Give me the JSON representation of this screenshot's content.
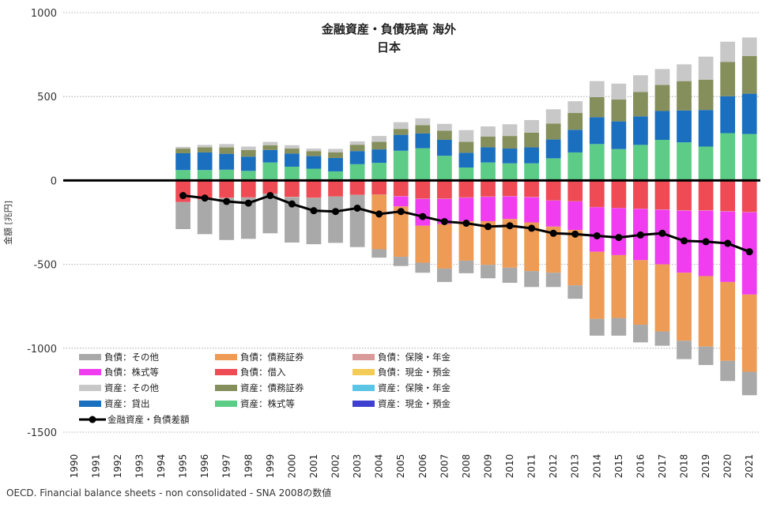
{
  "chart_data": {
    "type": "bar",
    "subtype": "stacked-bar-with-line",
    "title": "金融資産・負債残高 海外",
    "subtitle": "日本",
    "ylabel": "金額 [兆円]",
    "xlabel": "",
    "ylim": [
      -1500,
      1000
    ],
    "yticks": [
      1000,
      500,
      0,
      -500,
      -1000,
      -1500
    ],
    "ytick_labels": [
      "1000",
      "500",
      "0",
      "-500",
      "-1000",
      "-1500"
    ],
    "categories": [
      "1990",
      "1991",
      "1992",
      "1993",
      "1994",
      "1995",
      "1996",
      "1997",
      "1998",
      "1999",
      "2000",
      "2001",
      "2002",
      "2003",
      "2004",
      "2005",
      "2006",
      "2007",
      "2008",
      "2009",
      "2010",
      "2011",
      "2012",
      "2013",
      "2014",
      "2015",
      "2016",
      "2017",
      "2018",
      "2019",
      "2020",
      "2021"
    ],
    "asset_series": [
      {
        "name": "資産：現金・預金",
        "color": "#4040d0",
        "values": [
          null,
          null,
          null,
          null,
          null,
          2,
          2,
          2,
          2,
          2,
          2,
          2,
          2,
          2,
          2,
          2,
          2,
          2,
          2,
          2,
          2,
          2,
          2,
          2,
          2,
          2,
          2,
          2,
          2,
          2,
          2,
          2
        ]
      },
      {
        "name": "資産：株式等",
        "color": "#5dcc87",
        "values": [
          null,
          null,
          null,
          null,
          null,
          60,
          60,
          62,
          55,
          105,
          80,
          68,
          52,
          95,
          103,
          175,
          190,
          145,
          75,
          105,
          100,
          100,
          130,
          165,
          215,
          185,
          210,
          240,
          225,
          200,
          280,
          275
        ]
      },
      {
        "name": "資産：保険・年金",
        "color": "#5bc5e6",
        "values": [
          null,
          null,
          null,
          null,
          null,
          0,
          0,
          0,
          0,
          0,
          0,
          0,
          0,
          0,
          0,
          0,
          0,
          0,
          0,
          0,
          0,
          0,
          0,
          0,
          0,
          0,
          0,
          0,
          0,
          0,
          0,
          0
        ]
      },
      {
        "name": "資産：貸出",
        "color": "#1a6fbf",
        "values": [
          null,
          null,
          null,
          null,
          null,
          100,
          105,
          95,
          85,
          75,
          78,
          75,
          80,
          78,
          80,
          95,
          88,
          95,
          88,
          90,
          88,
          95,
          112,
          135,
          160,
          165,
          170,
          172,
          190,
          218,
          220,
          240
        ]
      },
      {
        "name": "資産：債務証券",
        "color": "#858f5c",
        "values": [
          null,
          null,
          null,
          null,
          null,
          28,
          30,
          38,
          40,
          28,
          30,
          30,
          34,
          38,
          45,
          35,
          50,
          55,
          65,
          65,
          75,
          88,
          95,
          100,
          120,
          130,
          145,
          155,
          175,
          180,
          205,
          225
        ]
      },
      {
        "name": "資産：その他",
        "color": "#c8c8c8",
        "values": [
          null,
          null,
          null,
          null,
          null,
          10,
          15,
          20,
          20,
          20,
          20,
          15,
          20,
          20,
          35,
          40,
          40,
          40,
          70,
          60,
          70,
          75,
          85,
          70,
          95,
          95,
          100,
          95,
          100,
          138,
          120,
          110
        ]
      }
    ],
    "liability_series": [
      {
        "name": "負債：現金・預金",
        "color": "#f2cc56",
        "values": [
          null,
          null,
          null,
          null,
          null,
          -3,
          -3,
          -3,
          -3,
          -3,
          -3,
          -3,
          -3,
          -3,
          -3,
          -3,
          -3,
          -3,
          -3,
          -3,
          -3,
          -3,
          -3,
          -3,
          -3,
          -3,
          -3,
          -3,
          -3,
          -3,
          -3,
          -3
        ]
      },
      {
        "name": "負債：借入",
        "color": "#ee4b55",
        "values": [
          null,
          null,
          null,
          null,
          null,
          -125,
          -110,
          -100,
          -98,
          -75,
          -95,
          -100,
          -92,
          -82,
          -80,
          -90,
          -105,
          -105,
          -98,
          -93,
          -90,
          -95,
          -115,
          -120,
          -155,
          -160,
          -165,
          -170,
          -175,
          -175,
          -180,
          -185
        ]
      },
      {
        "name": "負債：保険・年金",
        "color": "#d99a9a",
        "values": [
          null,
          null,
          null,
          null,
          null,
          -2,
          -2,
          -2,
          -2,
          -2,
          -2,
          -2,
          -2,
          -2,
          -2,
          -2,
          -2,
          -2,
          -2,
          -2,
          -2,
          -2,
          -2,
          -2,
          -2,
          -2,
          -2,
          -2,
          -2,
          -2,
          -2,
          -2
        ]
      },
      {
        "name": "負債：株式等",
        "color": "#f03df0",
        "values": [
          null,
          null,
          null,
          null,
          null,
          0,
          0,
          0,
          0,
          0,
          0,
          0,
          0,
          0,
          0,
          -60,
          -160,
          -150,
          -140,
          -145,
          -135,
          -150,
          -155,
          -170,
          -265,
          -280,
          -305,
          -325,
          -370,
          -390,
          -420,
          -490
        ]
      },
      {
        "name": "負債：債務証券",
        "color": "#ee9b55",
        "values": [
          null,
          null,
          null,
          null,
          null,
          0,
          0,
          0,
          0,
          0,
          0,
          0,
          0,
          0,
          -325,
          -300,
          -220,
          -265,
          -235,
          -260,
          -290,
          -290,
          -275,
          -330,
          -400,
          -375,
          -385,
          -400,
          -405,
          -420,
          -470,
          -460
        ]
      },
      {
        "name": "負債：その他",
        "color": "#a9a9a9",
        "values": [
          null,
          null,
          null,
          null,
          null,
          -160,
          -205,
          -250,
          -245,
          -235,
          -270,
          -275,
          -275,
          -310,
          -50,
          -55,
          -60,
          -80,
          -75,
          -80,
          -90,
          -95,
          -85,
          -80,
          -100,
          -105,
          -105,
          -85,
          -110,
          -110,
          -120,
          -140
        ]
      }
    ],
    "line_series": {
      "name": "金融資産・負債差額",
      "color": "#000000",
      "values": [
        null,
        null,
        null,
        null,
        null,
        -90,
        -105,
        -125,
        -135,
        -90,
        -140,
        -180,
        -185,
        -165,
        -200,
        -185,
        -215,
        -245,
        -255,
        -275,
        -270,
        -285,
        -315,
        -320,
        -330,
        -340,
        -325,
        -315,
        -360,
        -365,
        -375,
        -425
      ]
    },
    "legend": {
      "placement": "bottom-left",
      "entries": [
        {
          "label": "負債：その他",
          "color": "#a9a9a9",
          "kind": "bar"
        },
        {
          "label": "負債：債務証券",
          "color": "#ee9b55",
          "kind": "bar"
        },
        {
          "label": "負債：保険・年金",
          "color": "#d99a9a",
          "kind": "bar"
        },
        {
          "label": "負債：株式等",
          "color": "#f03df0",
          "kind": "bar"
        },
        {
          "label": "負債：借入",
          "color": "#ee4b55",
          "kind": "bar"
        },
        {
          "label": "負債：現金・預金",
          "color": "#f2cc56",
          "kind": "bar"
        },
        {
          "label": "資産：その他",
          "color": "#c8c8c8",
          "kind": "bar"
        },
        {
          "label": "資産：債務証券",
          "color": "#858f5c",
          "kind": "bar"
        },
        {
          "label": "資産：保険・年金",
          "color": "#5bc5e6",
          "kind": "bar"
        },
        {
          "label": "資産：貸出",
          "color": "#1a6fbf",
          "kind": "bar"
        },
        {
          "label": "資産：株式等",
          "color": "#5dcc87",
          "kind": "bar"
        },
        {
          "label": "資産：現金・預金",
          "color": "#4040d0",
          "kind": "bar"
        },
        {
          "label": "金融資産・負債差額",
          "color": "#000000",
          "kind": "line"
        }
      ]
    },
    "grid": "horizontal-dotted",
    "source_note": "OECD. Financial balance sheets - non consolidated - SNA 2008の数値"
  }
}
